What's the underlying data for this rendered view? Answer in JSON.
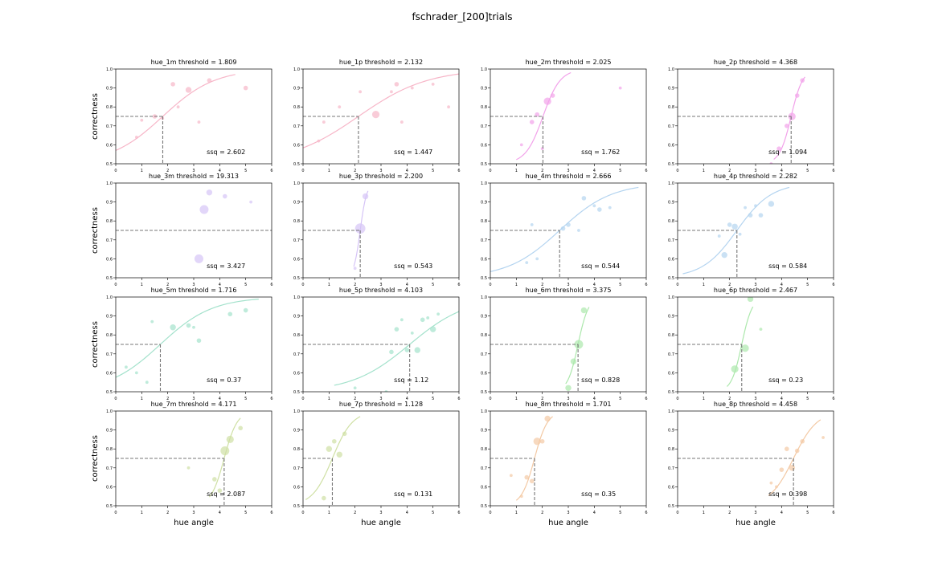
{
  "figure": {
    "title": "fschrader_[200]trials",
    "ylabel": "correctness",
    "xlabel": "hue angle",
    "x_ticks": [
      "0",
      "1",
      "2",
      "3",
      "4",
      "5",
      "6"
    ],
    "y_ticks": [
      "0.5",
      "0.6",
      "0.7",
      "0.8",
      "0.9",
      "1.0"
    ]
  },
  "chart_data": [
    {
      "type": "scatter",
      "title": "hue_1m threshold = 1.809",
      "ssq": "ssq = 2.602",
      "color": "#f7b6c8",
      "threshold": 1.809,
      "xlim": [
        0,
        6
      ],
      "ylim": [
        0.5,
        1.0
      ],
      "curve": {
        "x0": 0.0,
        "x1": 4.6,
        "slope": 1.0
      },
      "points": [
        [
          0.8,
          0.64,
          1
        ],
        [
          1.0,
          0.73,
          1
        ],
        [
          1.5,
          0.75,
          2
        ],
        [
          1.8,
          0.74,
          1
        ],
        [
          2.2,
          0.92,
          2
        ],
        [
          2.4,
          0.8,
          1
        ],
        [
          2.8,
          0.89,
          3
        ],
        [
          3.2,
          0.72,
          1
        ],
        [
          3.6,
          0.94,
          2
        ],
        [
          5.0,
          0.9,
          2
        ]
      ]
    },
    {
      "type": "scatter",
      "title": "hue_1p threshold = 2.132",
      "ssq": "ssq = 1.447",
      "color": "#f7b6c8",
      "threshold": 2.132,
      "xlim": [
        0,
        6
      ],
      "ylim": [
        0.5,
        1.0
      ],
      "curve": {
        "x0": 0.0,
        "x1": 6.0,
        "slope": 0.75
      },
      "points": [
        [
          0.6,
          0.62,
          1
        ],
        [
          0.8,
          0.72,
          1
        ],
        [
          1.4,
          0.8,
          1
        ],
        [
          2.2,
          0.88,
          1
        ],
        [
          2.8,
          0.76,
          4
        ],
        [
          3.4,
          0.88,
          1
        ],
        [
          3.6,
          0.92,
          2
        ],
        [
          3.8,
          0.72,
          1
        ],
        [
          4.2,
          0.9,
          1
        ],
        [
          5.0,
          0.92,
          1
        ],
        [
          5.6,
          0.8,
          1
        ]
      ]
    },
    {
      "type": "scatter",
      "title": "hue_2m threshold = 2.025",
      "ssq": "ssq = 1.762",
      "color": "#f2a2ea",
      "threshold": 2.025,
      "xlim": [
        0,
        6
      ],
      "ylim": [
        0.5,
        1.0
      ],
      "curve": {
        "x0": 1.0,
        "x1": 3.1,
        "slope": 3.0
      },
      "points": [
        [
          1.2,
          0.6,
          1
        ],
        [
          1.6,
          0.72,
          2
        ],
        [
          1.8,
          0.76,
          2
        ],
        [
          2.0,
          0.58,
          1
        ],
        [
          2.2,
          0.83,
          4
        ],
        [
          2.4,
          0.86,
          2
        ],
        [
          5.0,
          0.9,
          1
        ]
      ]
    },
    {
      "type": "scatter",
      "title": "hue_2p threshold = 4.368",
      "ssq": "ssq = 1.094",
      "color": "#f2a2ea",
      "threshold": 4.368,
      "xlim": [
        0,
        6
      ],
      "ylim": [
        0.5,
        1.0
      ],
      "curve": {
        "x0": 3.7,
        "x1": 4.9,
        "slope": 4.5
      },
      "points": [
        [
          3.6,
          0.5,
          1
        ],
        [
          3.9,
          0.58,
          2
        ],
        [
          4.2,
          0.7,
          2
        ],
        [
          4.4,
          0.75,
          4
        ],
        [
          4.6,
          0.86,
          2
        ],
        [
          4.8,
          0.94,
          2
        ]
      ]
    },
    {
      "type": "scatter",
      "title": "hue_3m threshold = 19.313",
      "ssq": "ssq = 3.427",
      "color": "#d6c4f7",
      "threshold": 19.313,
      "xlim": [
        0,
        6
      ],
      "ylim": [
        0.5,
        1.0
      ],
      "curve": null,
      "points": [
        [
          3.2,
          0.6,
          5
        ],
        [
          3.4,
          0.86,
          5
        ],
        [
          3.6,
          0.95,
          3
        ],
        [
          4.2,
          0.93,
          2
        ],
        [
          5.2,
          0.9,
          1
        ]
      ]
    },
    {
      "type": "scatter",
      "title": "hue_3p threshold = 2.200",
      "ssq": "ssq = 0.543",
      "color": "#d6c4f7",
      "threshold": 2.2,
      "xlim": [
        0,
        6
      ],
      "ylim": [
        0.5,
        1.0
      ],
      "curve": {
        "x0": 1.95,
        "x1": 2.5,
        "slope": 8.0
      },
      "points": [
        [
          2.0,
          0.55,
          1
        ],
        [
          2.2,
          0.76,
          6
        ],
        [
          2.4,
          0.93,
          3
        ]
      ]
    },
    {
      "type": "scatter",
      "title": "hue_4m threshold = 2.666",
      "ssq": "ssq = 0.544",
      "color": "#b4d4f0",
      "threshold": 2.666,
      "xlim": [
        0,
        6
      ],
      "ylim": [
        0.5,
        1.0
      ],
      "curve": {
        "x0": 0.0,
        "x1": 5.7,
        "slope": 1.0
      },
      "points": [
        [
          1.4,
          0.58,
          1
        ],
        [
          1.6,
          0.78,
          1
        ],
        [
          1.8,
          0.6,
          1
        ],
        [
          2.8,
          0.76,
          2
        ],
        [
          3.0,
          0.78,
          2
        ],
        [
          3.4,
          0.75,
          1
        ],
        [
          3.6,
          0.92,
          2
        ],
        [
          4.0,
          0.88,
          1
        ],
        [
          4.2,
          0.86,
          2
        ],
        [
          4.6,
          0.87,
          1
        ]
      ]
    },
    {
      "type": "scatter",
      "title": "hue_4p threshold = 2.282",
      "ssq": "ssq = 0.584",
      "color": "#b4d4f0",
      "threshold": 2.282,
      "xlim": [
        0,
        6
      ],
      "ylim": [
        0.5,
        1.0
      ],
      "curve": {
        "x0": 0.2,
        "x1": 4.3,
        "slope": 1.5
      },
      "points": [
        [
          1.8,
          0.62,
          3
        ],
        [
          1.6,
          0.72,
          1
        ],
        [
          2.0,
          0.78,
          2
        ],
        [
          2.2,
          0.77,
          3
        ],
        [
          2.4,
          0.73,
          1
        ],
        [
          2.6,
          0.87,
          1
        ],
        [
          2.8,
          0.83,
          2
        ],
        [
          3.0,
          0.88,
          1
        ],
        [
          3.2,
          0.83,
          2
        ],
        [
          3.6,
          0.89,
          3
        ]
      ]
    },
    {
      "type": "scatter",
      "title": "hue_5m threshold = 1.716",
      "ssq": "ssq = 0.37",
      "color": "#a4e2cc",
      "threshold": 1.716,
      "xlim": [
        0,
        6
      ],
      "ylim": [
        0.5,
        1.0
      ],
      "curve": {
        "x0": 0.0,
        "x1": 5.5,
        "slope": 1.0
      },
      "points": [
        [
          0.4,
          0.63,
          1
        ],
        [
          0.8,
          0.6,
          1
        ],
        [
          1.2,
          0.55,
          1
        ],
        [
          1.4,
          0.87,
          1
        ],
        [
          2.2,
          0.84,
          3
        ],
        [
          2.8,
          0.85,
          2
        ],
        [
          3.0,
          0.84,
          1
        ],
        [
          3.2,
          0.77,
          2
        ],
        [
          4.4,
          0.91,
          2
        ],
        [
          5.0,
          0.93,
          2
        ]
      ]
    },
    {
      "type": "scatter",
      "title": "hue_5p threshold = 4.103",
      "ssq": "ssq = 1.12",
      "color": "#a4e2cc",
      "threshold": 4.103,
      "xlim": [
        0,
        6
      ],
      "ylim": [
        0.5,
        1.0
      ],
      "curve": {
        "x0": 1.2,
        "x1": 6.0,
        "slope": 0.9
      },
      "points": [
        [
          2.0,
          0.52,
          1
        ],
        [
          3.2,
          0.5,
          1
        ],
        [
          3.4,
          0.71,
          2
        ],
        [
          3.6,
          0.83,
          2
        ],
        [
          3.8,
          0.88,
          1
        ],
        [
          4.0,
          0.72,
          2
        ],
        [
          4.2,
          0.81,
          1
        ],
        [
          4.4,
          0.72,
          3
        ],
        [
          4.6,
          0.88,
          2
        ],
        [
          4.8,
          0.89,
          1
        ],
        [
          5.0,
          0.83,
          3
        ],
        [
          5.2,
          0.91,
          1
        ]
      ]
    },
    {
      "type": "scatter",
      "title": "hue_6m threshold = 3.375",
      "ssq": "ssq = 0.828",
      "color": "#ace8ac",
      "threshold": 3.375,
      "xlim": [
        0,
        6
      ],
      "ylim": [
        0.5,
        1.0
      ],
      "curve": {
        "x0": 2.9,
        "x1": 3.8,
        "slope": 5.0
      },
      "points": [
        [
          3.0,
          0.52,
          3
        ],
        [
          3.2,
          0.66,
          3
        ],
        [
          3.4,
          0.75,
          5
        ],
        [
          3.6,
          0.93,
          3
        ]
      ]
    },
    {
      "type": "scatter",
      "title": "hue_6p threshold = 2.467",
      "ssq": "ssq = 0.23",
      "color": "#ace8ac",
      "threshold": 2.467,
      "xlim": [
        0,
        6
      ],
      "ylim": [
        0.5,
        1.0
      ],
      "curve": {
        "x0": 1.9,
        "x1": 2.9,
        "slope": 5.0
      },
      "points": [
        [
          2.2,
          0.62,
          4
        ],
        [
          2.6,
          0.73,
          4
        ],
        [
          2.8,
          0.99,
          3
        ],
        [
          3.2,
          0.83,
          1
        ]
      ]
    },
    {
      "type": "scatter",
      "title": "hue_7m threshold = 4.171",
      "ssq": "ssq = 2.087",
      "color": "#cfe0a4",
      "threshold": 4.171,
      "xlim": [
        0,
        6
      ],
      "ylim": [
        0.5,
        1.0
      ],
      "curve": {
        "x0": 3.6,
        "x1": 4.8,
        "slope": 4.0
      },
      "points": [
        [
          2.8,
          0.7,
          1
        ],
        [
          3.8,
          0.64,
          2
        ],
        [
          4.0,
          0.58,
          2
        ],
        [
          4.2,
          0.79,
          5
        ],
        [
          4.4,
          0.85,
          4
        ],
        [
          4.8,
          0.91,
          2
        ]
      ]
    },
    {
      "type": "scatter",
      "title": "hue_7p threshold = 1.128",
      "ssq": "ssq = 0.131",
      "color": "#cfe0a4",
      "threshold": 1.128,
      "xlim": [
        0,
        6
      ],
      "ylim": [
        0.5,
        1.0
      ],
      "curve": {
        "x0": 0.1,
        "x1": 2.2,
        "slope": 2.6
      },
      "points": [
        [
          0.8,
          0.54,
          2
        ],
        [
          1.0,
          0.8,
          3
        ],
        [
          1.2,
          0.84,
          2
        ],
        [
          1.4,
          0.77,
          3
        ],
        [
          1.6,
          0.88,
          2
        ]
      ]
    },
    {
      "type": "scatter",
      "title": "hue_8m threshold = 1.701",
      "ssq": "ssq = 0.35",
      "color": "#f3c9a4",
      "threshold": 1.701,
      "xlim": [
        0,
        6
      ],
      "ylim": [
        0.5,
        1.0
      ],
      "curve": {
        "x0": 1.0,
        "x1": 2.4,
        "slope": 4.0
      },
      "points": [
        [
          0.8,
          0.66,
          1
        ],
        [
          1.2,
          0.55,
          1
        ],
        [
          1.4,
          0.65,
          2
        ],
        [
          1.6,
          0.63,
          2
        ],
        [
          1.8,
          0.84,
          4
        ],
        [
          2.0,
          0.84,
          2
        ],
        [
          2.2,
          0.96,
          3
        ]
      ]
    },
    {
      "type": "scatter",
      "title": "hue_8p threshold = 4.458",
      "ssq": "ssq = 0.398",
      "color": "#f3c9a4",
      "threshold": 4.458,
      "xlim": [
        0,
        6
      ],
      "ylim": [
        0.5,
        1.0
      ],
      "curve": {
        "x0": 3.5,
        "x1": 5.5,
        "slope": 2.2
      },
      "points": [
        [
          3.6,
          0.62,
          1
        ],
        [
          3.8,
          0.6,
          1
        ],
        [
          4.0,
          0.69,
          2
        ],
        [
          4.2,
          0.8,
          2
        ],
        [
          4.4,
          0.7,
          3
        ],
        [
          4.6,
          0.79,
          2
        ],
        [
          4.8,
          0.84,
          2
        ],
        [
          5.6,
          0.86,
          1
        ]
      ]
    }
  ]
}
